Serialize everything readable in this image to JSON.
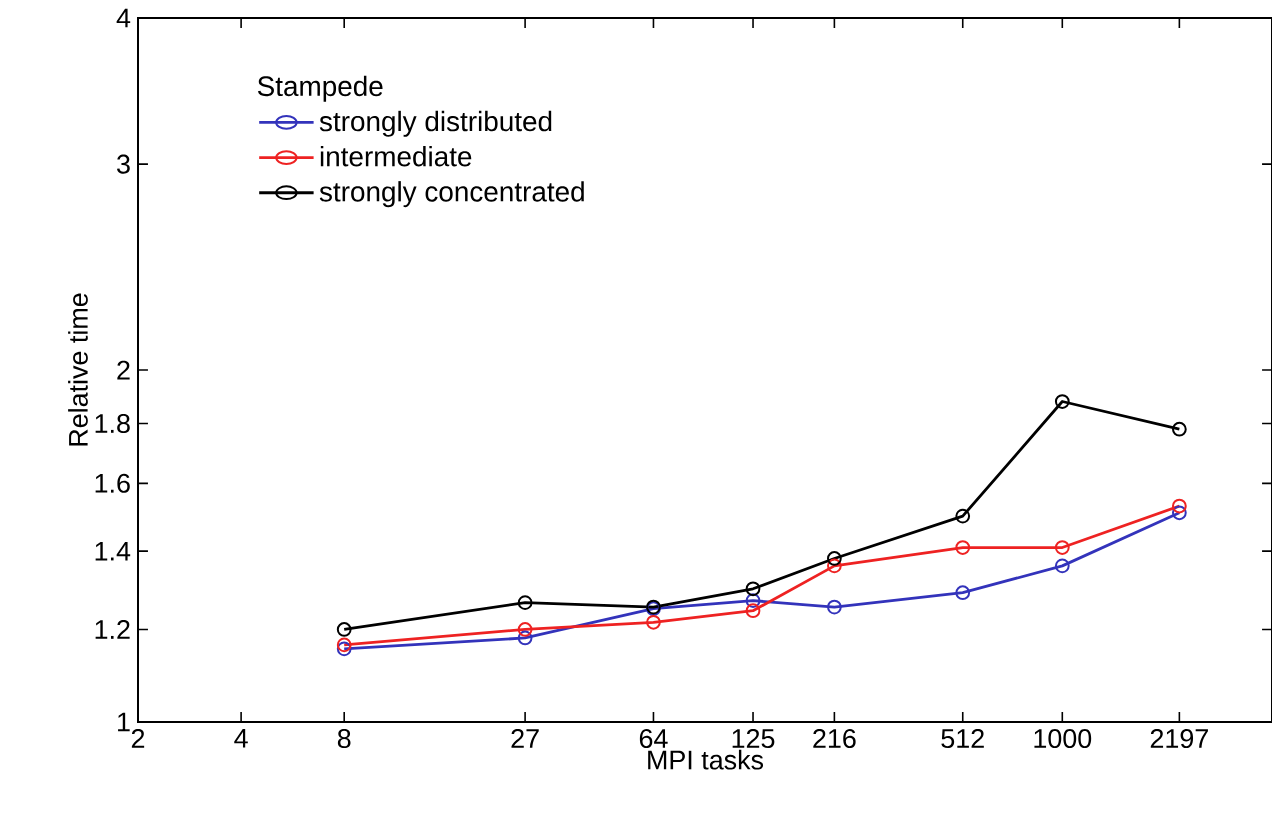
{
  "chart_data": {
    "type": "line",
    "xlabel": "MPI tasks",
    "ylabel": "Relative time",
    "legend_title": "Stampede",
    "x": [
      8,
      27,
      64,
      125,
      216,
      512,
      1000,
      2197
    ],
    "series": [
      {
        "name": "strongly distributed",
        "color": "#3333bb",
        "values": [
          1.155,
          1.18,
          1.25,
          1.27,
          1.254,
          1.29,
          1.36,
          1.51
        ]
      },
      {
        "name": "intermediate",
        "color": "#ee2222",
        "values": [
          1.164,
          1.2,
          1.217,
          1.245,
          1.36,
          1.41,
          1.41,
          1.53
        ]
      },
      {
        "name": "strongly concentrated",
        "color": "#000000",
        "values": [
          1.2,
          1.265,
          1.254,
          1.3,
          1.38,
          1.5,
          1.88,
          1.78
        ]
      }
    ],
    "log": "xy",
    "xlim": [
      2,
      4096
    ],
    "ylim": [
      1,
      4
    ],
    "xticks": [
      2,
      4,
      8,
      27,
      64,
      125,
      216,
      512,
      1000,
      2197
    ],
    "yticks": [
      1,
      1.2,
      1.4,
      1.6,
      1.8,
      2,
      3,
      4
    ],
    "grid": false,
    "legend": "top left",
    "marker": "circle",
    "line_style": "solid"
  }
}
